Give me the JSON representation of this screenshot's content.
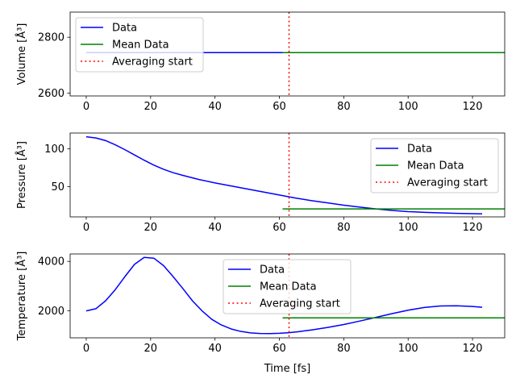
{
  "chart_data": [
    {
      "type": "line",
      "ylabel": "Volume [Å³]",
      "xlabel": "",
      "xlim": [
        -5,
        130
      ],
      "ylim": [
        2590,
        2890
      ],
      "xticks": [
        0,
        20,
        40,
        60,
        80,
        100,
        120
      ],
      "yticks": [
        2600,
        2800
      ],
      "legend": "top-left",
      "series": [
        {
          "name": "Data",
          "color": "#0000ff",
          "style": "solid",
          "x": [
            0,
            10,
            20,
            30,
            40,
            50,
            63
          ],
          "y": [
            2745,
            2745,
            2745,
            2745,
            2745,
            2745,
            2745
          ]
        },
        {
          "name": "Mean Data",
          "color": "#008000",
          "style": "solid",
          "x": [
            61,
            130
          ],
          "y": [
            2745,
            2745
          ]
        }
      ],
      "vline": {
        "name": "Averaging start",
        "x": 63,
        "color": "#ff0000",
        "style": "dotted"
      }
    },
    {
      "type": "line",
      "ylabel": "Pressure [Å³]",
      "xlabel": "",
      "xlim": [
        -5,
        130
      ],
      "ylim": [
        10,
        121
      ],
      "xticks": [
        0,
        20,
        40,
        60,
        80,
        100,
        120
      ],
      "yticks": [
        50,
        100
      ],
      "legend": "top-right",
      "series": [
        {
          "name": "Data",
          "color": "#0000ff",
          "style": "solid",
          "x": [
            0,
            3,
            6,
            9,
            12,
            15,
            18,
            21,
            24,
            27,
            30,
            35,
            40,
            45,
            50,
            55,
            60,
            65,
            70,
            75,
            80,
            85,
            90,
            95,
            100,
            105,
            110,
            115,
            120,
            123
          ],
          "y": [
            116,
            114.5,
            111,
            105.5,
            99,
            92,
            85,
            78.5,
            73,
            68.5,
            65,
            59.5,
            55,
            51,
            47,
            43,
            39,
            35,
            31.5,
            28.5,
            25.5,
            23,
            20.5,
            18.5,
            17,
            16,
            15.3,
            14.7,
            14.2,
            14
          ]
        },
        {
          "name": "Mean Data",
          "color": "#008000",
          "style": "solid",
          "x": [
            61,
            130
          ],
          "y": [
            20.5,
            20.5
          ]
        }
      ],
      "vline": {
        "name": "Averaging start",
        "x": 63,
        "color": "#ff0000",
        "style": "dotted"
      }
    },
    {
      "type": "line",
      "ylabel": "Temperature [Å³]",
      "xlabel": "Time [fs]",
      "xlim": [
        -5,
        130
      ],
      "ylim": [
        900,
        4300
      ],
      "xticks": [
        0,
        20,
        40,
        60,
        80,
        100,
        120
      ],
      "yticks": [
        2000,
        4000
      ],
      "legend": "top-center",
      "series": [
        {
          "name": "Data",
          "color": "#0000ff",
          "style": "solid",
          "x": [
            0,
            3,
            6,
            9,
            12,
            15,
            18,
            21,
            24,
            27,
            30,
            33,
            36,
            39,
            42,
            45,
            48,
            51,
            54,
            57,
            60,
            63,
            66,
            70,
            75,
            80,
            85,
            90,
            95,
            100,
            105,
            110,
            115,
            120,
            123
          ],
          "y": [
            1990,
            2080,
            2400,
            2850,
            3380,
            3880,
            4160,
            4130,
            3830,
            3380,
            2900,
            2400,
            1990,
            1650,
            1420,
            1260,
            1160,
            1100,
            1075,
            1070,
            1085,
            1110,
            1150,
            1220,
            1320,
            1440,
            1580,
            1730,
            1880,
            2020,
            2130,
            2190,
            2200,
            2170,
            2140
          ]
        },
        {
          "name": "Mean Data",
          "color": "#008000",
          "style": "solid",
          "x": [
            61,
            130
          ],
          "y": [
            1710,
            1710
          ]
        }
      ],
      "vline": {
        "name": "Averaging start",
        "x": 63,
        "color": "#ff0000",
        "style": "dotted"
      }
    }
  ]
}
